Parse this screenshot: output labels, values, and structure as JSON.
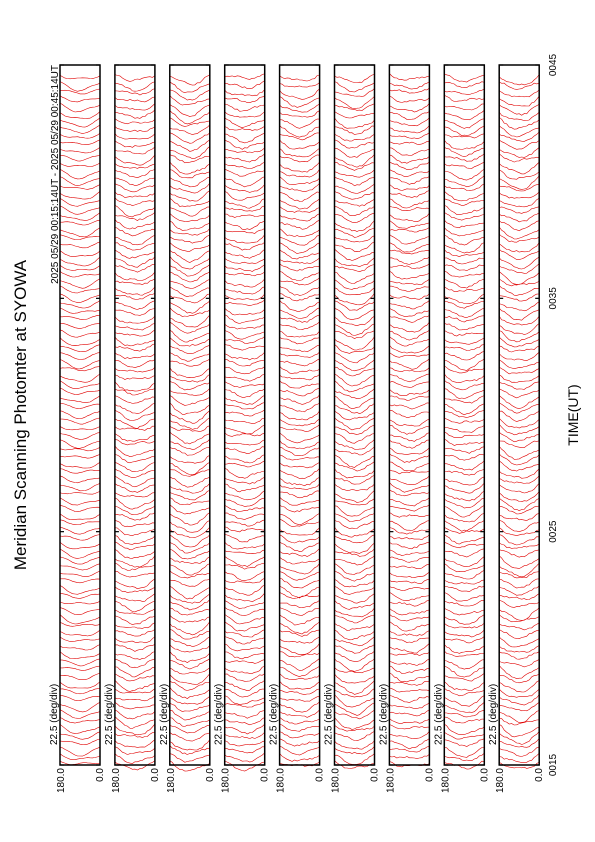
{
  "title": "Meridian Scanning Photomter at SYOWA",
  "subtitle": "2025 05/29 00:15:14UT - 2025 05/29 00:45:14UT",
  "x_axis": {
    "label": "TIME(UT)",
    "ticks": [
      "0015",
      "0025",
      "0035",
      "0045"
    ]
  },
  "panels": [
    {
      "scale": "22.5 (deg/div)",
      "top_label": "180.0",
      "bottom_label": "0.0"
    },
    {
      "scale": "22.5 (deg/div)",
      "top_label": "180.0",
      "bottom_label": "0.0"
    },
    {
      "scale": "22.5 (deg/div)",
      "top_label": "180.0",
      "bottom_label": "0.0"
    },
    {
      "scale": "22.5 (deg/div)",
      "top_label": "180.0",
      "bottom_label": "0.0"
    },
    {
      "scale": "22.5 (deg/div)",
      "top_label": "180.0",
      "bottom_label": "0.0"
    },
    {
      "scale": "22.5 (deg/div)",
      "top_label": "180.0",
      "bottom_label": "0.0"
    },
    {
      "scale": "22.5 (deg/div)",
      "top_label": "180.0",
      "bottom_label": "0.0"
    },
    {
      "scale": "22.5 (deg/div)",
      "top_label": "180.0",
      "bottom_label": "0.0"
    },
    {
      "scale": "22.5 (deg/div)",
      "top_label": "180.0",
      "bottom_label": "0.0"
    }
  ]
}
